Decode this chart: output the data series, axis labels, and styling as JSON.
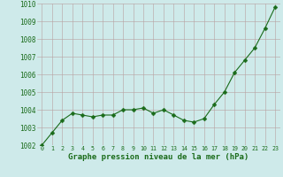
{
  "x": [
    0,
    1,
    2,
    3,
    4,
    5,
    6,
    7,
    8,
    9,
    10,
    11,
    12,
    13,
    14,
    15,
    16,
    17,
    18,
    19,
    20,
    21,
    22,
    23
  ],
  "y": [
    1002.0,
    1002.7,
    1003.4,
    1003.8,
    1003.7,
    1003.6,
    1003.7,
    1003.7,
    1004.0,
    1004.0,
    1004.1,
    1003.8,
    1004.0,
    1003.7,
    1003.4,
    1003.3,
    1003.5,
    1004.3,
    1005.0,
    1006.1,
    1006.8,
    1007.5,
    1008.6,
    1009.8
  ],
  "line_color": "#1a6b1a",
  "marker": "D",
  "marker_size": 2.5,
  "bg_color": "#ceeaea",
  "grid_color": "#b8a0a0",
  "xlabel": "Graphe pression niveau de la mer (hPa)",
  "xlabel_color": "#1a6b1a",
  "tick_color": "#1a6b1a",
  "ylim": [
    1002,
    1010
  ],
  "xlim_min": -0.5,
  "xlim_max": 23.5,
  "yticks": [
    1002,
    1003,
    1004,
    1005,
    1006,
    1007,
    1008,
    1009,
    1010
  ],
  "xticks": [
    0,
    1,
    2,
    3,
    4,
    5,
    6,
    7,
    8,
    9,
    10,
    11,
    12,
    13,
    14,
    15,
    16,
    17,
    18,
    19,
    20,
    21,
    22,
    23
  ],
  "ytick_fontsize": 5.5,
  "xtick_fontsize": 4.8,
  "xlabel_fontsize": 6.5
}
